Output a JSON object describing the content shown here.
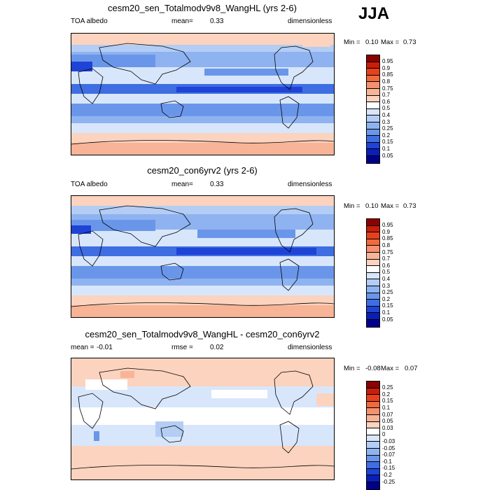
{
  "season": "JJA",
  "panels": [
    {
      "title": "cesm20_sen_Totalmodv9v8_WangHL (yrs 2-6)",
      "left_label": "TOA albedo",
      "mean_label": "mean=",
      "mean_value": "0.33",
      "units": "dimensionless",
      "min_label": "Min =",
      "min_value": "0.10",
      "max_label": "Max =",
      "max_value": "0.73"
    },
    {
      "title": "cesm20_con6yrv2 (yrs 2-6)",
      "left_label": "TOA albedo",
      "mean_label": "mean=",
      "mean_value": "0.33",
      "units": "dimensionless",
      "min_label": "Min =",
      "min_value": "0.10",
      "max_label": "Max =",
      "max_value": "0.73"
    },
    {
      "title": "cesm20_sen_Totalmodv9v8_WangHL - cesm20_con6yrv2",
      "left_label": "mean =",
      "left_value": "-0.01",
      "mean_label": "rmse =",
      "mean_value": "0.02",
      "units": "dimensionless",
      "min_label": "Min =",
      "min_value": "-0.08",
      "max_label": "Max =",
      "max_value": "0.07"
    }
  ],
  "colorbars": {
    "field": {
      "levels": [
        "0.95",
        "0.9",
        "0.85",
        "0.8",
        "0.75",
        "0.7",
        "0.6",
        "0.5",
        "0.4",
        "0.3",
        "0.25",
        "0.2",
        "0.15",
        "0.1",
        "0.05"
      ],
      "colors": [
        "#8b0000",
        "#c81e0a",
        "#e8401e",
        "#f06a3c",
        "#f59070",
        "#f8b496",
        "#fbd3be",
        "#ffffff",
        "#d8e6fb",
        "#b3cdf5",
        "#8fb3f0",
        "#6a96ea",
        "#3f6ee2",
        "#1f43d6",
        "#0a1fb8",
        "#00008b"
      ]
    },
    "diff": {
      "levels": [
        "0.25",
        "0.2",
        "0.15",
        "0.1",
        "0.07",
        "0.05",
        "0.03",
        "0",
        "-0.03",
        "-0.05",
        "-0.07",
        "-0.1",
        "-0.15",
        "-0.2",
        "-0.25"
      ],
      "colors": [
        "#8b0000",
        "#c81e0a",
        "#e8401e",
        "#f06a3c",
        "#f59070",
        "#f8b496",
        "#fbd3be",
        "#ffffff",
        "#d8e6fb",
        "#b3cdf5",
        "#8fb3f0",
        "#6a96ea",
        "#3f6ee2",
        "#1f43d6",
        "#0a1fb8",
        "#00008b"
      ]
    }
  },
  "chart_data": [
    {
      "type": "heatmap",
      "title": "cesm20_sen_Totalmodv9v8_WangHL (yrs 2-6)",
      "variable": "TOA albedo",
      "mean": 0.33,
      "min": 0.1,
      "max": 0.73,
      "units": "dimensionless"
    },
    {
      "type": "heatmap",
      "title": "cesm20_con6yrv2 (yrs 2-6)",
      "variable": "TOA albedo",
      "mean": 0.33,
      "min": 0.1,
      "max": 0.73,
      "units": "dimensionless"
    },
    {
      "type": "heatmap",
      "title": "cesm20_sen_Totalmodv9v8_WangHL - cesm20_con6yrv2",
      "mean": -0.01,
      "rmse": 0.02,
      "min": -0.08,
      "max": 0.07,
      "units": "dimensionless"
    }
  ]
}
